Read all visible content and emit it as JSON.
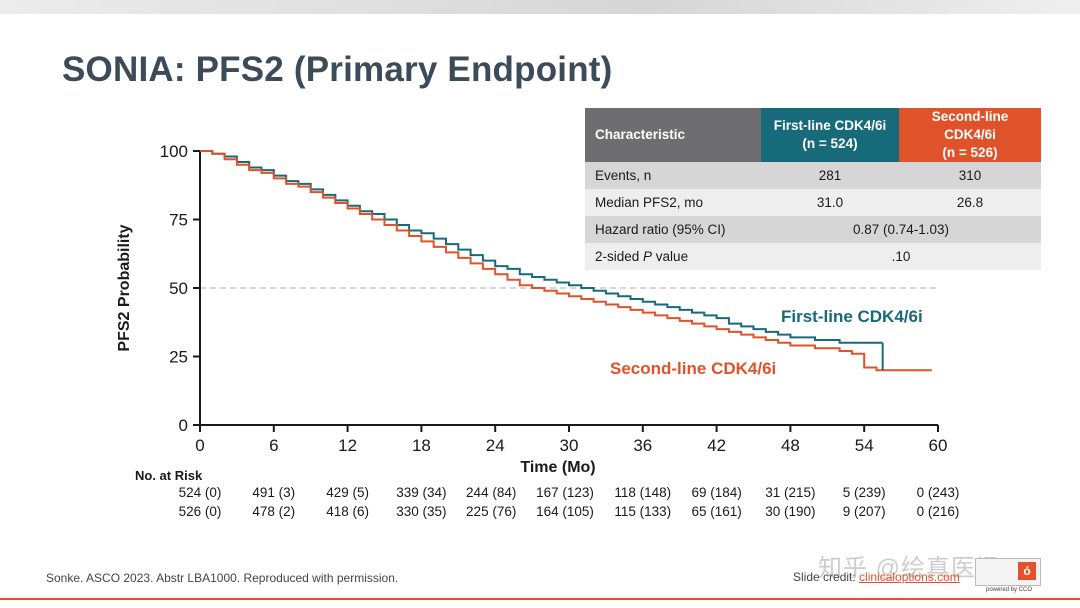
{
  "slide": {
    "title": "SONIA: PFS2 (Primary Endpoint)",
    "footer_citation": "Sonke. ASCO 2023. Abstr LBA1000. Reproduced with permission.",
    "slide_credit_label": "Slide credit: ",
    "slide_credit_link": "clinicaloptions.com",
    "logo_badge": "ó",
    "logo_caption": "powered by CCO",
    "watermark": "知乎 @绘真医讯"
  },
  "table": {
    "headers": [
      "Characteristic",
      "First-line CDK4/6i\n(n = 524)",
      "Second-line CDK4/6i\n(n = 526)"
    ],
    "header_colors": [
      "#6e6e70",
      "#176a7a",
      "#e0532a"
    ],
    "rows": [
      {
        "label": "Events, n",
        "first": "281",
        "second": "310"
      },
      {
        "label": "Median PFS2, mo",
        "first": "31.0",
        "second": "26.8"
      },
      {
        "label": "Hazard ratio (95% CI)",
        "combined": "0.87 (0.74-1.03)"
      },
      {
        "label_prefix": "2-sided ",
        "label_italic": "P",
        "label_suffix": " value",
        "combined": ".10"
      }
    ]
  },
  "chart_data": {
    "type": "line",
    "subtype": "kaplan-meier",
    "ylabel": "PFS2 Probability",
    "xlabel": "Time (Mo)",
    "xlim": [
      0,
      60
    ],
    "ylim": [
      0,
      100
    ],
    "xticks": [
      0,
      6,
      12,
      18,
      24,
      30,
      36,
      42,
      48,
      54,
      60
    ],
    "yticks": [
      0,
      25,
      50,
      75,
      100
    ],
    "reference_line": {
      "y": 50,
      "style": "dashed",
      "color": "#c8c8c8"
    },
    "series": [
      {
        "name": "First-line CDK4/6i",
        "color": "#176a7a",
        "x": [
          0,
          1,
          2,
          3,
          4,
          5,
          6,
          7,
          8,
          9,
          10,
          11,
          12,
          13,
          14,
          15,
          16,
          17,
          18,
          19,
          20,
          21,
          22,
          23,
          24,
          25,
          26,
          27,
          28,
          29,
          30,
          31,
          32,
          33,
          34,
          35,
          36,
          37,
          38,
          39,
          40,
          41,
          42,
          43,
          44,
          45,
          46,
          47,
          48,
          50,
          52,
          54,
          55.5
        ],
        "y": [
          100,
          99,
          98,
          96,
          94,
          93,
          91,
          89,
          88,
          86,
          84,
          82,
          80,
          78,
          77,
          75,
          73,
          71,
          70,
          68,
          66,
          64,
          62,
          60,
          58,
          57,
          55,
          54,
          53,
          52,
          51,
          50,
          49,
          48,
          47,
          46,
          45,
          44,
          43,
          42,
          41,
          40,
          39,
          37,
          36,
          35,
          34,
          33,
          32,
          31,
          30,
          30,
          30
        ]
      },
      {
        "name": "Second-line CDK4/6i",
        "color": "#e0532a",
        "x": [
          0,
          1,
          2,
          3,
          4,
          5,
          6,
          7,
          8,
          9,
          10,
          11,
          12,
          13,
          14,
          15,
          16,
          17,
          18,
          19,
          20,
          21,
          22,
          23,
          24,
          25,
          26,
          27,
          28,
          29,
          30,
          31,
          32,
          33,
          34,
          35,
          36,
          37,
          38,
          39,
          40,
          41,
          42,
          43,
          44,
          45,
          46,
          47,
          48,
          50,
          52,
          53,
          54,
          55,
          56,
          58,
          59.5
        ],
        "y": [
          100,
          99,
          97,
          95,
          93,
          92,
          90,
          88,
          87,
          85,
          83,
          81,
          79,
          77,
          75,
          73,
          71,
          69,
          67,
          65,
          63,
          61,
          59,
          57,
          55,
          53,
          51,
          50,
          49,
          48,
          47,
          46,
          45,
          44,
          43,
          42,
          41,
          40,
          39,
          38,
          37,
          36,
          35,
          34,
          33,
          32,
          31,
          30,
          29,
          28,
          27,
          26,
          21,
          20,
          20,
          20,
          20
        ]
      }
    ],
    "censor_drop": {
      "series": 0,
      "x": 55.5,
      "to_y": 20
    },
    "at_risk": {
      "title": "No. at Risk",
      "times": [
        0,
        6,
        12,
        18,
        24,
        30,
        36,
        42,
        48,
        54,
        60
      ],
      "rows": [
        [
          "524 (0)",
          "491 (3)",
          "429 (5)",
          "339 (34)",
          "244 (84)",
          "167 (123)",
          "118 (148)",
          "69 (184)",
          "31 (215)",
          "5 (239)",
          "0 (243)"
        ],
        [
          "526 (0)",
          "478 (2)",
          "418 (6)",
          "330 (35)",
          "225 (76)",
          "164 (105)",
          "115 (133)",
          "65 (161)",
          "30 (190)",
          "9 (207)",
          "0 (216)"
        ]
      ]
    }
  }
}
